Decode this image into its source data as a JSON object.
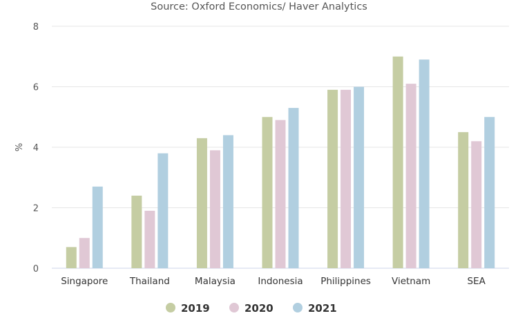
{
  "chart_data": {
    "type": "bar",
    "subtitle": "Source: Oxford Economics/ Haver Analytics",
    "ylabel": "%",
    "xlabel": "",
    "ylim": [
      0,
      8
    ],
    "yticks": [
      0,
      2,
      4,
      6,
      8
    ],
    "grid": true,
    "legend_position": "bottom-center",
    "categories": [
      "Singapore",
      "Thailand",
      "Malaysia",
      "Indonesia",
      "Philippines",
      "Vietnam",
      "SEA"
    ],
    "series": [
      {
        "name": "2019",
        "color": "#c5cda3",
        "values": [
          0.7,
          2.4,
          4.3,
          5.0,
          5.9,
          7.0,
          4.5
        ]
      },
      {
        "name": "2020",
        "color": "#e0c8d5",
        "values": [
          1.0,
          1.9,
          3.9,
          4.9,
          5.9,
          6.1,
          4.2
        ]
      },
      {
        "name": "2021",
        "color": "#b1cfe0",
        "values": [
          2.7,
          3.8,
          4.4,
          5.3,
          6.0,
          6.9,
          5.0
        ]
      }
    ]
  }
}
